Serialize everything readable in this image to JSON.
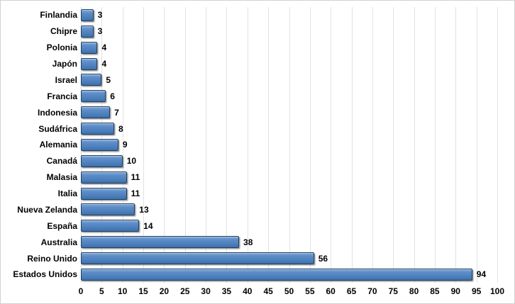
{
  "chart_data": {
    "type": "bar",
    "orientation": "horizontal",
    "title": "",
    "xlabel": "",
    "ylabel": "",
    "categories": [
      "Finlandia",
      "Chipre",
      "Polonia",
      "Japón",
      "Israel",
      "Francia",
      "Indonesia",
      "Sudáfrica",
      "Alemania",
      "Canadá",
      "Malasia",
      "Italia",
      "Nueva Zelanda",
      "España",
      "Australia",
      "Reino Unido",
      "Estados Unidos"
    ],
    "values": [
      3,
      3,
      4,
      4,
      5,
      6,
      7,
      8,
      9,
      10,
      11,
      11,
      13,
      14,
      38,
      56,
      94
    ],
    "xlim": [
      0,
      100
    ],
    "x_ticks": [
      0,
      5,
      10,
      15,
      20,
      25,
      30,
      35,
      40,
      45,
      50,
      55,
      60,
      65,
      70,
      75,
      80,
      85,
      90,
      95,
      100
    ],
    "grid": true,
    "legend": false,
    "colors": {
      "bar_fill": "#4f81bd",
      "bar_fill_light": "#84aad8",
      "bar_border": "#20405f",
      "gridline": "#e2e2e2",
      "text": "#000000",
      "background": "#ffffff",
      "frame_border": "#d2d2d2"
    }
  }
}
